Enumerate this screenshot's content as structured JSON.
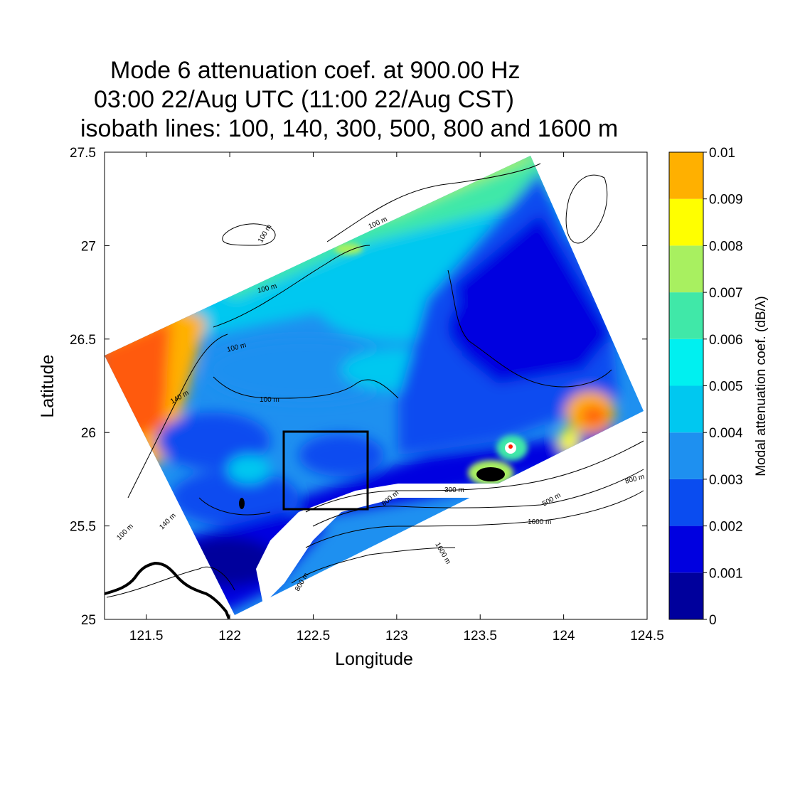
{
  "chart_data": {
    "type": "heatmap",
    "title_lines": [
      "Mode 6 attenuation coef. at 900.00 Hz",
      "03:00 22/Aug UTC (11:00 22/Aug CST)",
      "isobath lines: 100, 140, 300, 500, 800 and 1600 m"
    ],
    "xlabel": "Longitude",
    "ylabel": "Latitude",
    "xlim": [
      121.25,
      124.5
    ],
    "ylim": [
      25,
      27.5
    ],
    "x_ticks": [
      "121.5",
      "122",
      "122.5",
      "123",
      "123.5",
      "124",
      "124.5"
    ],
    "y_ticks": [
      "25",
      "25.5",
      "26",
      "26.5",
      "27",
      "27.5"
    ],
    "colorbar": {
      "label": "Modal attenuation coef. (dB/λ)",
      "ticks": [
        "0",
        "0.001",
        "0.002",
        "0.003",
        "0.004",
        "0.005",
        "0.006",
        "0.007",
        "0.008",
        "0.009",
        "0.01"
      ],
      "range": [
        0,
        0.01
      ],
      "colors": [
        "#00009c",
        "#0000e0",
        "#0a4cf0",
        "#1e90f0",
        "#00c8f0",
        "#00f0f0",
        "#40e8a8",
        "#a8f060",
        "#ffff00",
        "#ffb000",
        "#ff5a10"
      ]
    },
    "isobath_labels": [
      "100 m",
      "140 m",
      "300 m",
      "500 m",
      "800 m",
      "1600 m"
    ],
    "highlight_box": {
      "lon": [
        122.33,
        122.83
      ],
      "lat": [
        25.58,
        26.0
      ]
    }
  }
}
